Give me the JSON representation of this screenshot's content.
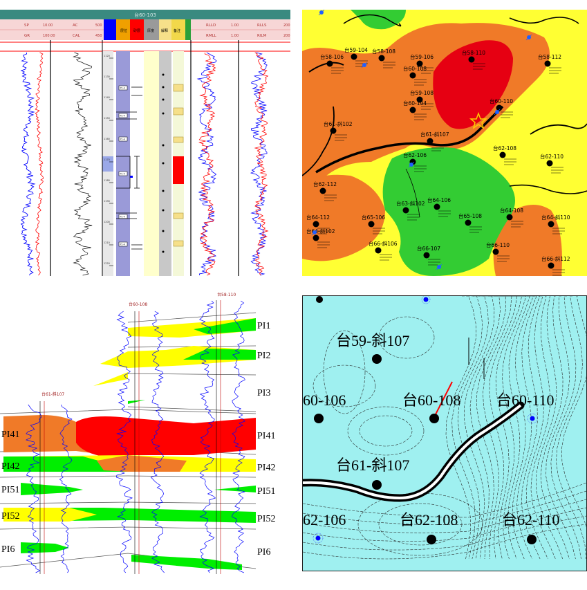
{
  "log_panel": {
    "title": "台60-103",
    "curve_headers": [
      {
        "name": "SP",
        "range_left": "",
        "range_right": "10.00"
      },
      {
        "name": "GR",
        "range_left": "",
        "range_right": "100.00"
      },
      {
        "name": "AC",
        "range_left": "",
        "range_right": "500"
      },
      {
        "name": "CAL",
        "range_left": "",
        "range_right": "450"
      },
      {
        "name": "RLLD",
        "range_left": "1.00",
        "range_right": "200"
      },
      {
        "name": "RMLL",
        "range_left": "1.00",
        "range_right": "200"
      },
      {
        "name": "RLLS",
        "range_left": "",
        "range_right": "200"
      },
      {
        "name": "RILM",
        "range_left": "",
        "range_right": "200"
      }
    ],
    "column_headers": [
      "层位",
      "砂层",
      "厚度",
      "解释",
      "备注",
      "结论"
    ],
    "layer_tags": [
      "P1-4",
      "P1-4",
      "P1-4",
      "P1-4",
      "P1-4",
      "P1-4"
    ],
    "depth_ticks": [
      "1120",
      "1130",
      "1140",
      "1150",
      "1160",
      "1170",
      "1180",
      "1190",
      "1200",
      "1210",
      "1220"
    ],
    "colors": {
      "header_bar": "#3a8a80",
      "track_blue": "#9a9ad8",
      "track_yellow": "#ffffcc",
      "track_grey": "#c8c8c8",
      "red": "#ff0000",
      "blue": "#0000ff"
    }
  },
  "map_panel": {
    "wells": [
      {
        "label": "台58-106"
      },
      {
        "label": "台58-108"
      },
      {
        "label": "台60-108"
      },
      {
        "label": "台58-110"
      },
      {
        "label": "台58-112"
      },
      {
        "label": "台59-104"
      },
      {
        "label": "台59-106"
      },
      {
        "label": "台59-108"
      },
      {
        "label": "台60-104"
      },
      {
        "label": "台60-110"
      },
      {
        "label": "台61-斜102"
      },
      {
        "label": "台61-斜107"
      },
      {
        "label": "台62-106"
      },
      {
        "label": "台62-108"
      },
      {
        "label": "台62-110"
      },
      {
        "label": "台62-112"
      },
      {
        "label": "台63-斜102"
      },
      {
        "label": "台64-106"
      },
      {
        "label": "台64-108"
      },
      {
        "label": "台64-斜110"
      },
      {
        "label": "台64-112"
      },
      {
        "label": "台65-106"
      },
      {
        "label": "台65-108"
      },
      {
        "label": "台66-斜106"
      },
      {
        "label": "台66-107"
      },
      {
        "label": "台66-110"
      },
      {
        "label": "台66-斜112"
      },
      {
        "label": "台64-斜102"
      }
    ],
    "colors": {
      "yellow": "#ffff33",
      "orange": "#f07a28",
      "red": "#e60012",
      "green": "#33cc33",
      "fault": "#000000",
      "star": "#ffcc00"
    }
  },
  "section_panel": {
    "wells": [
      "台61-斜107",
      "台60-108",
      "台58-110"
    ],
    "layers": [
      {
        "name": "PI1",
        "right_label": "PI1"
      },
      {
        "name": "PI2",
        "right_label": "PI2"
      },
      {
        "name": "PI3",
        "right_label": "PI3"
      },
      {
        "name": "PI41",
        "left_label": "PI41",
        "right_label": "PI41"
      },
      {
        "name": "PI42",
        "left_label": "PI42",
        "right_label": "PI42"
      },
      {
        "name": "PI51",
        "left_label": "PI51",
        "right_label": "PI51"
      },
      {
        "name": "PI52",
        "left_label": "PI52",
        "right_label": "PI52"
      },
      {
        "name": "PI6",
        "left_label": "PI6",
        "right_label": "PI6"
      }
    ],
    "colors": {
      "red": "#ff0000",
      "orange": "#f07a28",
      "green": "#00ee00",
      "yellow": "#ffff00",
      "blue": "#0000ff"
    }
  },
  "struct_panel": {
    "labels": {
      "w59_107": "台59-斜107",
      "w60_106": "60-106",
      "w60_108": "台60-108",
      "w60_110": "台60-110",
      "w61_107": "台61-斜107",
      "w62_106": "62-106",
      "w62_108": "台62-108",
      "w62_110": "台62-110"
    },
    "colors": {
      "bg": "#9ff0f0",
      "fault": "#000000",
      "red": "#ff0000",
      "blue": "#0000ff"
    }
  }
}
